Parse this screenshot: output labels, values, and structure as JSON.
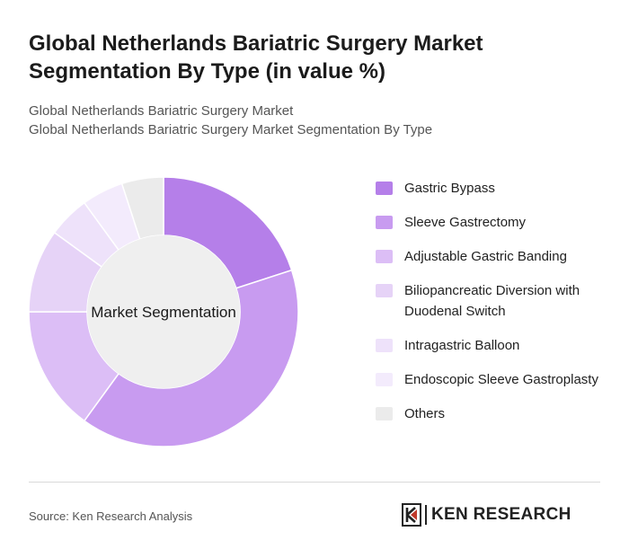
{
  "title": "Global Netherlands Bariatric Surgery Market Segmentation By Type (in value %)",
  "subtitle_line1": "Global Netherlands Bariatric Surgery Market",
  "subtitle_line2": "Global Netherlands Bariatric Surgery Market Segmentation By Type",
  "source": "Source: Ken Research Analysis",
  "logo_text": "KEN RESEARCH",
  "chart_data": {
    "type": "pie",
    "donut": true,
    "center_label": "Market Segmentation",
    "legend_position": "right",
    "categories": [
      "Gastric Bypass",
      "Sleeve Gastrectomy",
      "Adjustable Gastric Banding",
      "Biliopancreatic Diversion with Duodenal Switch",
      "Intragastric Balloon",
      "Endoscopic Sleeve Gastroplasty",
      "Others"
    ],
    "values": [
      20,
      40,
      15,
      10,
      5,
      5,
      5
    ],
    "colors": [
      "#b57fe9",
      "#c89bf0",
      "#dcbef6",
      "#e6d3f7",
      "#eee2fa",
      "#f3ebfc",
      "#ebebeb"
    ]
  }
}
